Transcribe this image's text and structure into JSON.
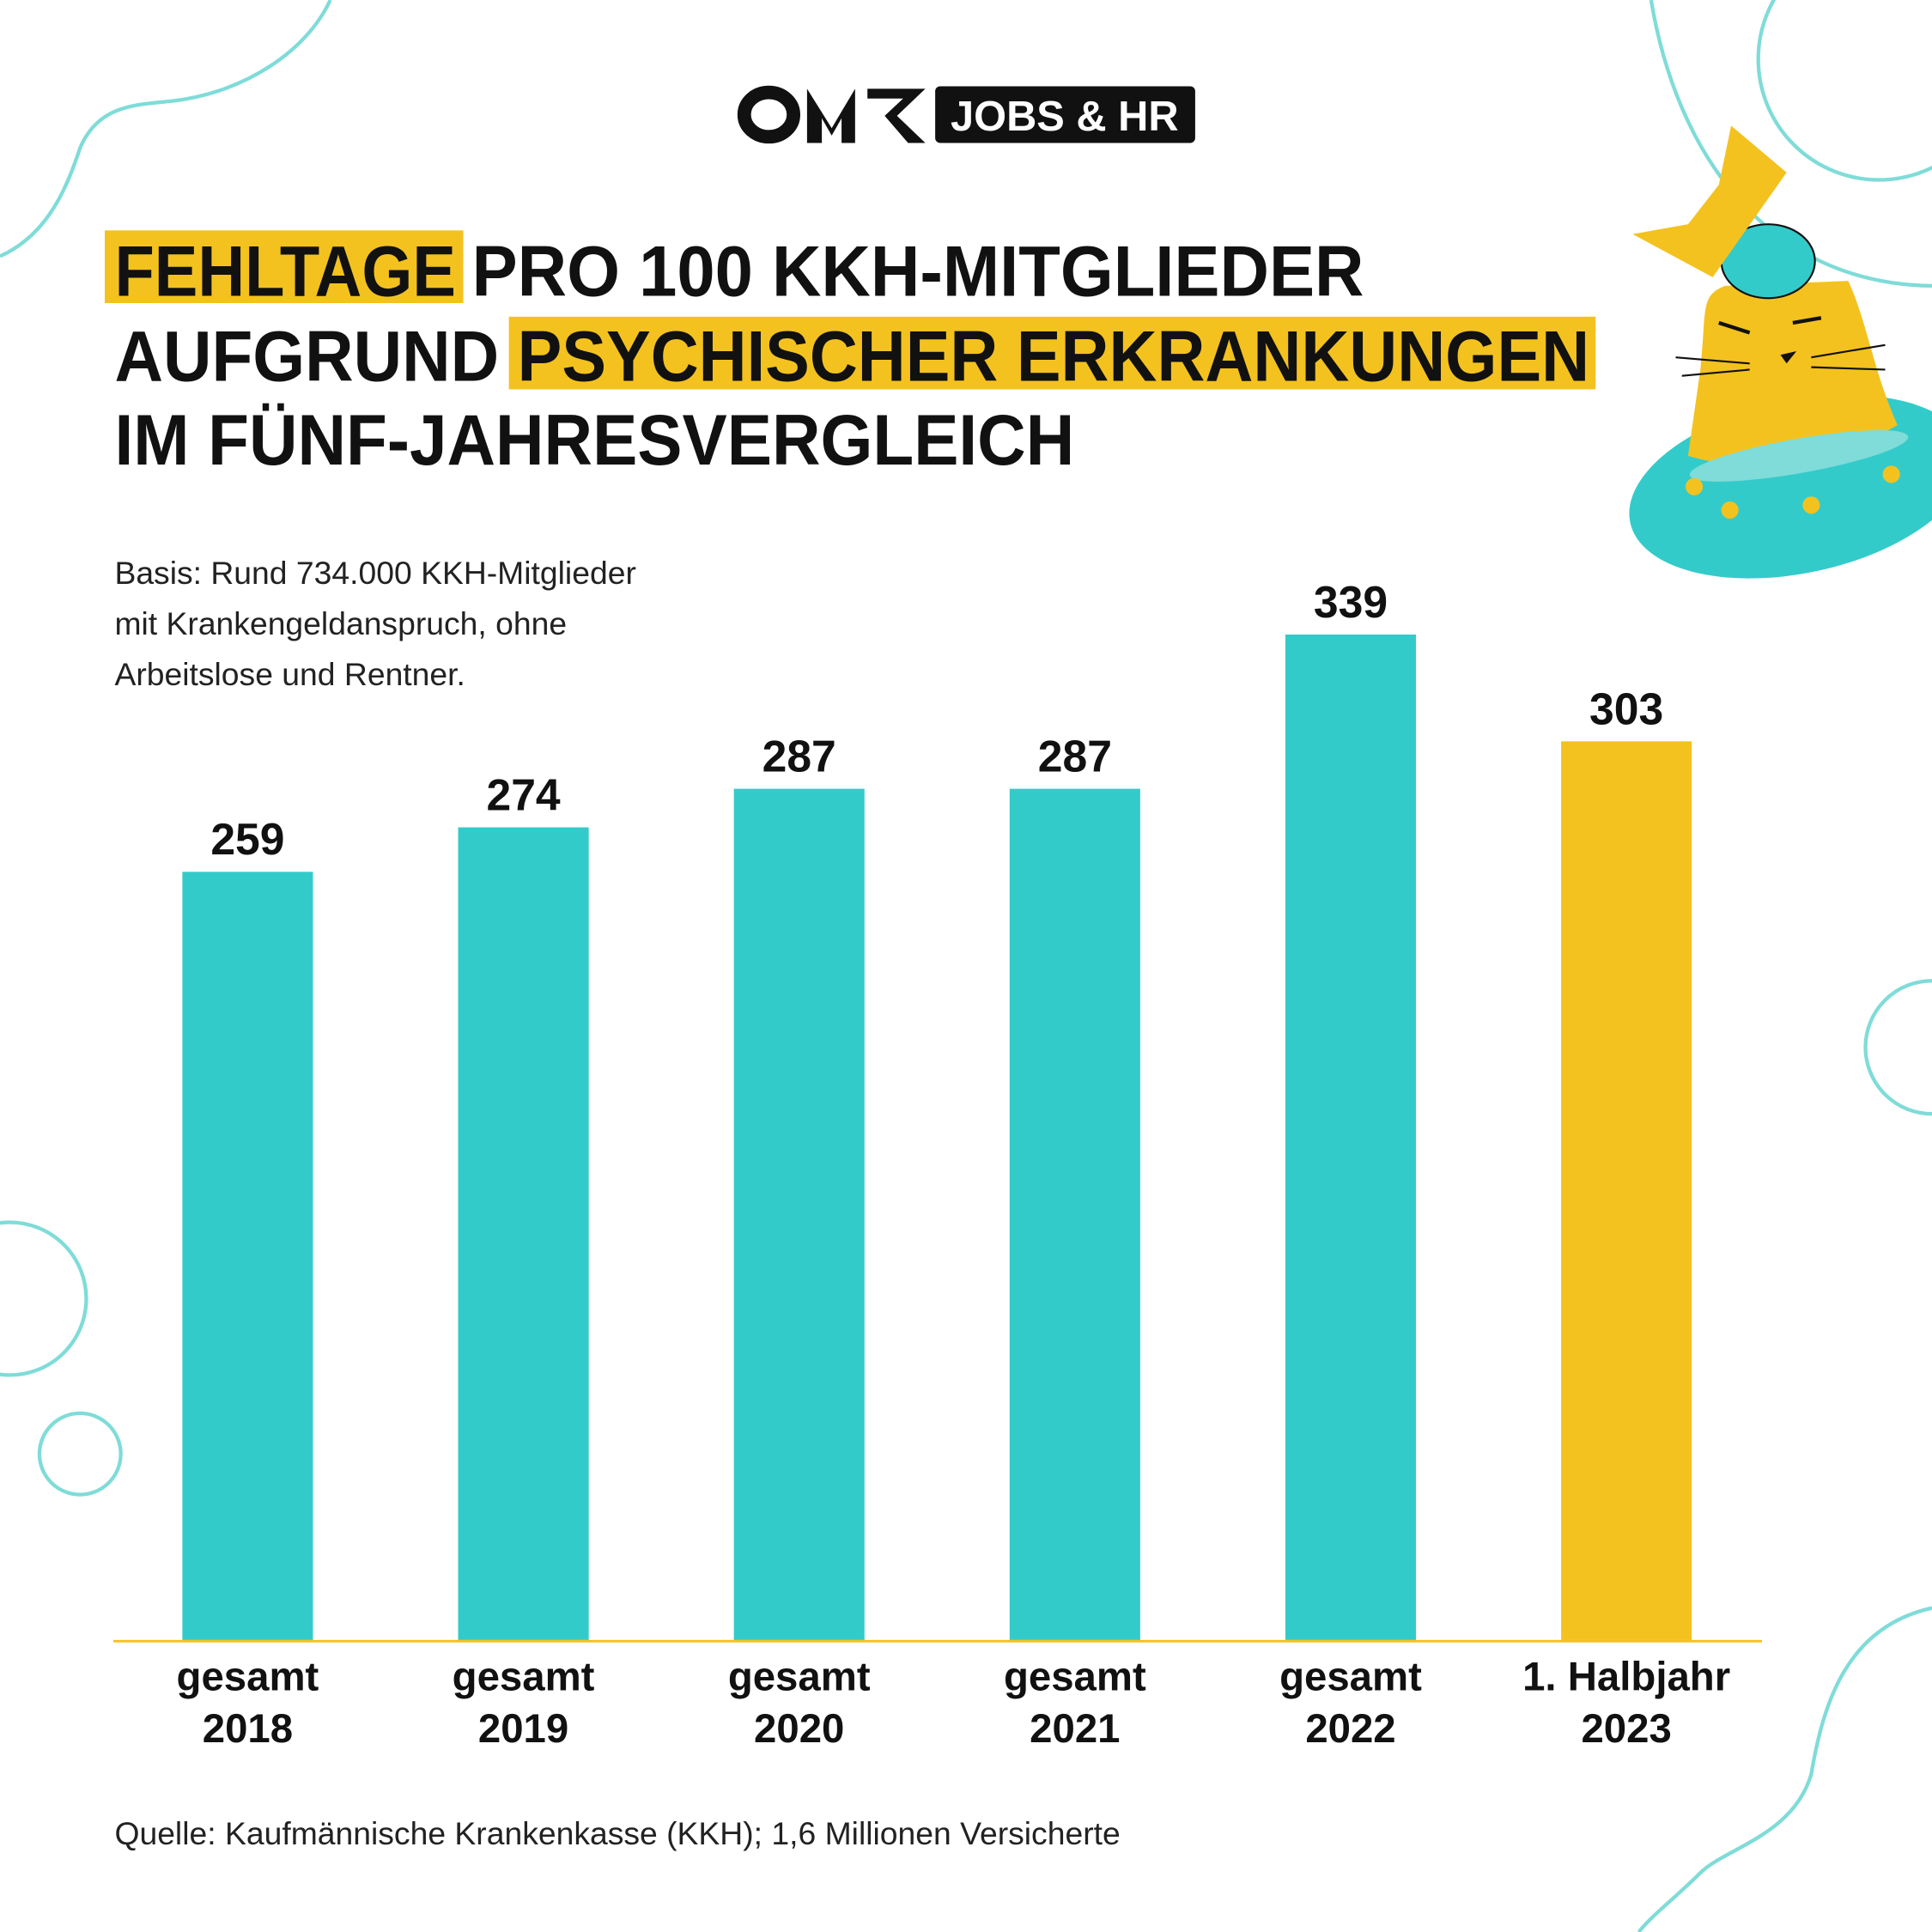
{
  "logo": {
    "brand": "OMR",
    "badge": "JOBS & HR"
  },
  "title": {
    "line1_highlight": "FEHLTAGE",
    "line1_rest": "PRO 100 KKH-MITGLIEDER",
    "line2_start": "AUFGRUND",
    "line2_highlight": "PSYCHISCHER ERKRANKUNGEN",
    "line3": "IM FÜNF-JAHRESVERGLEICH"
  },
  "note": {
    "line1": "Basis: Rund 734.000 KKH-Mitglieder",
    "line2": "mit Krankengeldanspruch, ohne",
    "line3": "Arbeitslose und Rentner."
  },
  "source": "Quelle: Kaufmännische Krankenkasse (KKH); 1,6 Millionen Versicherte",
  "colors": {
    "teal": "#33cbca",
    "yellow": "#f4c21f",
    "decor": "#7fdcd8",
    "text": "#111111"
  },
  "illustration": "cat-with-brain-in-ufo",
  "chart_data": {
    "type": "bar",
    "categories": [
      [
        "gesamt",
        "2018"
      ],
      [
        "gesamt",
        "2019"
      ],
      [
        "gesamt",
        "2020"
      ],
      [
        "gesamt",
        "2021"
      ],
      [
        "gesamt",
        "2022"
      ],
      [
        "1. Halbjahr",
        "2023"
      ]
    ],
    "values": [
      259,
      274,
      287,
      287,
      339,
      303
    ],
    "bar_colors": [
      "#33cbca",
      "#33cbca",
      "#33cbca",
      "#33cbca",
      "#33cbca",
      "#f4c21f"
    ],
    "ylim": [
      0,
      339
    ],
    "grid": false,
    "data_labels": true
  }
}
